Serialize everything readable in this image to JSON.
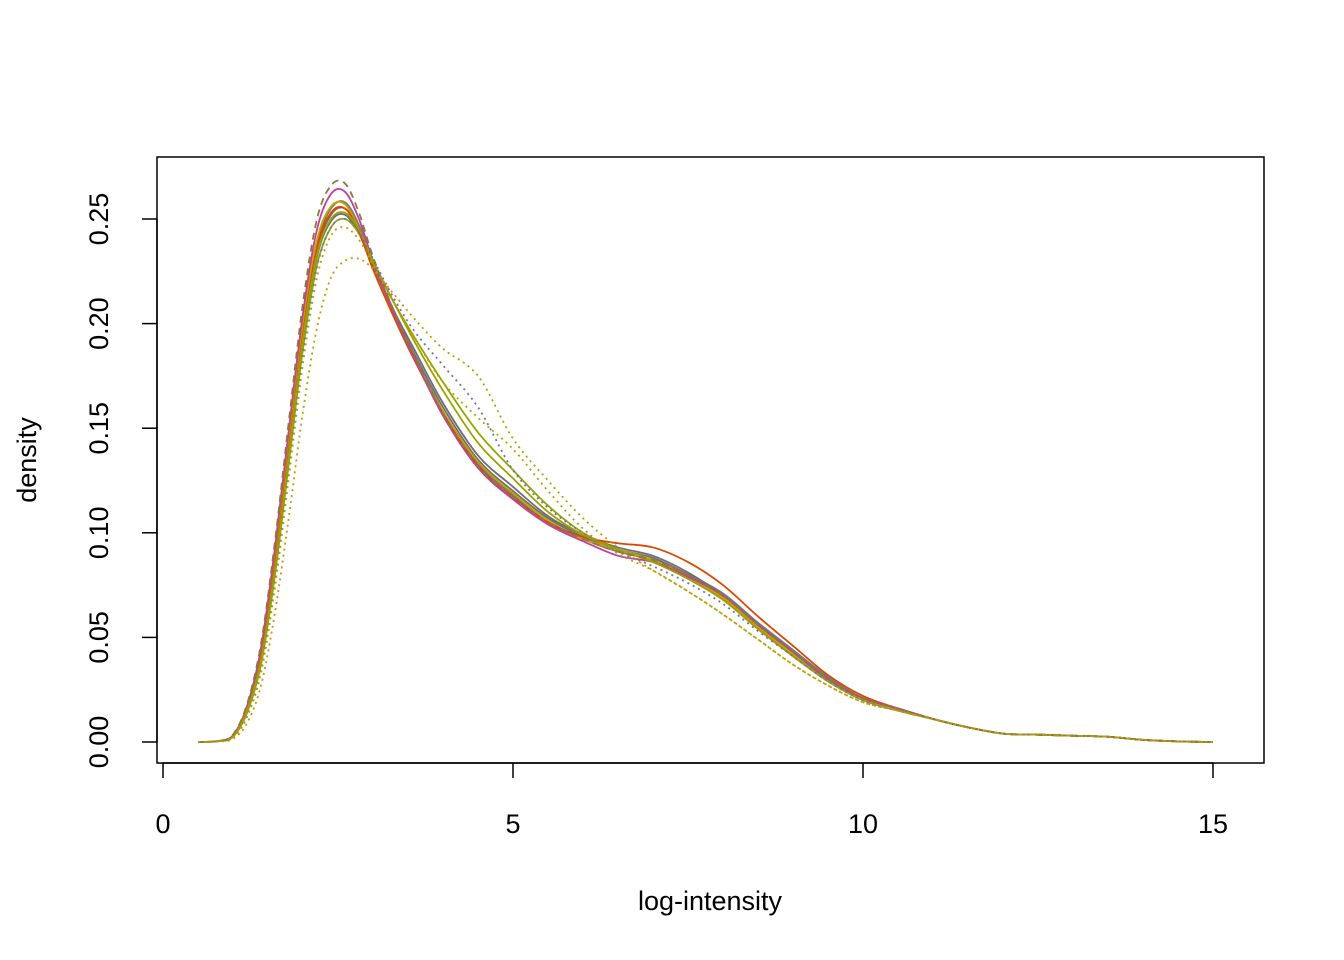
{
  "chart_data": {
    "type": "line",
    "title": "",
    "xlabel": "log-intensity",
    "ylabel": "density",
    "xlim": [
      0,
      15.6
    ],
    "ylim": [
      0,
      0.28
    ],
    "xticks": [
      0,
      5,
      10,
      15
    ],
    "xtick_labels": [
      "0",
      "5",
      "10",
      "15"
    ],
    "yticks": [
      0.0,
      0.05,
      0.1,
      0.15,
      0.2,
      0.25
    ],
    "ytick_labels": [
      "0.00",
      "0.05",
      "0.10",
      "0.15",
      "0.20",
      "0.25"
    ],
    "grid": false,
    "legend": "none",
    "x": [
      0.5,
      0.8,
      1.0,
      1.2,
      1.4,
      1.6,
      1.8,
      2.0,
      2.2,
      2.4,
      2.6,
      2.8,
      3.0,
      3.3,
      3.6,
      4.0,
      4.5,
      5.0,
      5.5,
      6.0,
      6.5,
      7.0,
      7.5,
      8.0,
      8.5,
      9.0,
      9.5,
      10.0,
      10.5,
      11.0,
      11.5,
      12.0,
      12.5,
      13.0,
      13.5,
      14.0,
      14.5,
      15.0
    ],
    "series": [
      {
        "color": "#707070",
        "dash": "solid",
        "values": [
          0.0,
          0.0005,
          0.003,
          0.015,
          0.04,
          0.085,
          0.14,
          0.195,
          0.235,
          0.252,
          0.255,
          0.245,
          0.228,
          0.205,
          0.185,
          0.16,
          0.135,
          0.12,
          0.107,
          0.098,
          0.092,
          0.088,
          0.08,
          0.07,
          0.056,
          0.043,
          0.03,
          0.021,
          0.016,
          0.011,
          0.007,
          0.004,
          0.0035,
          0.003,
          0.0025,
          0.001,
          0.0003,
          0.0
        ]
      },
      {
        "color": "#777777",
        "dash": "solid",
        "values": [
          0.0,
          0.0005,
          0.003,
          0.016,
          0.042,
          0.088,
          0.143,
          0.198,
          0.238,
          0.255,
          0.258,
          0.247,
          0.229,
          0.206,
          0.184,
          0.158,
          0.133,
          0.118,
          0.105,
          0.097,
          0.091,
          0.087,
          0.08,
          0.071,
          0.057,
          0.044,
          0.031,
          0.021,
          0.016,
          0.011,
          0.007,
          0.004,
          0.0035,
          0.003,
          0.0025,
          0.001,
          0.0003,
          0.0
        ]
      },
      {
        "color": "#6e6e6e",
        "dash": "solid",
        "values": [
          0.0,
          0.0004,
          0.0025,
          0.014,
          0.038,
          0.082,
          0.137,
          0.192,
          0.232,
          0.249,
          0.252,
          0.243,
          0.227,
          0.206,
          0.187,
          0.162,
          0.137,
          0.122,
          0.108,
          0.099,
          0.093,
          0.089,
          0.081,
          0.07,
          0.055,
          0.042,
          0.03,
          0.021,
          0.016,
          0.011,
          0.007,
          0.004,
          0.0035,
          0.003,
          0.0025,
          0.001,
          0.0003,
          0.0
        ]
      },
      {
        "color": "#c9a200",
        "dash": "solid",
        "values": [
          0.0,
          0.0005,
          0.003,
          0.016,
          0.043,
          0.09,
          0.146,
          0.2,
          0.24,
          0.256,
          0.257,
          0.245,
          0.226,
          0.204,
          0.183,
          0.158,
          0.134,
          0.119,
          0.106,
          0.097,
          0.092,
          0.087,
          0.079,
          0.069,
          0.055,
          0.042,
          0.03,
          0.021,
          0.016,
          0.011,
          0.007,
          0.004,
          0.0035,
          0.003,
          0.0025,
          0.001,
          0.0003,
          0.0
        ]
      },
      {
        "color": "#8fa800",
        "dash": "solid",
        "values": [
          0.0,
          0.0004,
          0.0025,
          0.014,
          0.037,
          0.08,
          0.134,
          0.188,
          0.228,
          0.246,
          0.25,
          0.243,
          0.229,
          0.21,
          0.193,
          0.172,
          0.148,
          0.13,
          0.113,
          0.1,
          0.092,
          0.086,
          0.078,
          0.068,
          0.054,
          0.041,
          0.029,
          0.02,
          0.015,
          0.011,
          0.007,
          0.004,
          0.0035,
          0.003,
          0.0025,
          0.001,
          0.0003,
          0.0
        ]
      },
      {
        "color": "#d94801",
        "dash": "solid",
        "values": [
          0.0,
          0.0005,
          0.003,
          0.015,
          0.04,
          0.085,
          0.14,
          0.195,
          0.236,
          0.253,
          0.255,
          0.244,
          0.226,
          0.203,
          0.182,
          0.157,
          0.132,
          0.117,
          0.105,
          0.098,
          0.095,
          0.093,
          0.086,
          0.075,
          0.06,
          0.046,
          0.032,
          0.022,
          0.016,
          0.011,
          0.007,
          0.004,
          0.0035,
          0.003,
          0.0025,
          0.001,
          0.0003,
          0.0
        ]
      },
      {
        "color": "#c2409a",
        "dash": "solid",
        "values": [
          0.0,
          0.0005,
          0.0032,
          0.017,
          0.045,
          0.093,
          0.15,
          0.205,
          0.245,
          0.262,
          0.263,
          0.25,
          0.23,
          0.205,
          0.183,
          0.156,
          0.131,
          0.116,
          0.104,
          0.096,
          0.089,
          0.086,
          0.079,
          0.07,
          0.056,
          0.043,
          0.03,
          0.021,
          0.016,
          0.011,
          0.007,
          0.004,
          0.0035,
          0.003,
          0.0025,
          0.001,
          0.0003,
          0.0
        ]
      },
      {
        "color": "#a0a000",
        "dash": "solid",
        "values": [
          0.0,
          0.0004,
          0.0026,
          0.015,
          0.039,
          0.083,
          0.138,
          0.193,
          0.233,
          0.25,
          0.253,
          0.245,
          0.23,
          0.21,
          0.191,
          0.168,
          0.143,
          0.126,
          0.11,
          0.099,
          0.092,
          0.086,
          0.078,
          0.068,
          0.054,
          0.041,
          0.029,
          0.02,
          0.015,
          0.011,
          0.007,
          0.004,
          0.0035,
          0.003,
          0.0025,
          0.001,
          0.0003,
          0.0
        ]
      },
      {
        "color": "#c49a00",
        "dash": "dotted",
        "values": [
          0.0,
          0.0002,
          0.0015,
          0.009,
          0.027,
          0.062,
          0.108,
          0.158,
          0.198,
          0.222,
          0.23,
          0.231,
          0.226,
          0.214,
          0.202,
          0.188,
          0.175,
          0.145,
          0.125,
          0.107,
          0.093,
          0.082,
          0.072,
          0.061,
          0.049,
          0.037,
          0.027,
          0.019,
          0.015,
          0.011,
          0.007,
          0.004,
          0.0035,
          0.003,
          0.0025,
          0.001,
          0.0003,
          0.0
        ]
      },
      {
        "color": "#7570b3",
        "dash": "dotted",
        "values": [
          0.0,
          0.0003,
          0.002,
          0.012,
          0.034,
          0.076,
          0.13,
          0.186,
          0.227,
          0.246,
          0.25,
          0.244,
          0.231,
          0.212,
          0.196,
          0.18,
          0.16,
          0.13,
          0.112,
          0.1,
          0.091,
          0.084,
          0.076,
          0.066,
          0.053,
          0.041,
          0.029,
          0.02,
          0.015,
          0.011,
          0.007,
          0.004,
          0.0035,
          0.003,
          0.0025,
          0.001,
          0.0003,
          0.0
        ]
      },
      {
        "color": "#8b7a3a",
        "dash": "dashed",
        "values": [
          0.0,
          0.0006,
          0.0035,
          0.018,
          0.047,
          0.096,
          0.154,
          0.21,
          0.25,
          0.266,
          0.267,
          0.253,
          0.232,
          0.206,
          0.184,
          0.157,
          0.132,
          0.117,
          0.105,
          0.097,
          0.091,
          0.087,
          0.08,
          0.07,
          0.056,
          0.043,
          0.03,
          0.021,
          0.016,
          0.011,
          0.007,
          0.004,
          0.0035,
          0.003,
          0.0025,
          0.001,
          0.0003,
          0.0
        ]
      },
      {
        "color": "#b8a000",
        "dash": "dotted",
        "values": [
          0.0,
          0.0003,
          0.002,
          0.012,
          0.033,
          0.074,
          0.127,
          0.181,
          0.222,
          0.242,
          0.246,
          0.24,
          0.228,
          0.21,
          0.193,
          0.172,
          0.155,
          0.14,
          0.12,
          0.102,
          0.09,
          0.082,
          0.072,
          0.061,
          0.049,
          0.037,
          0.027,
          0.019,
          0.015,
          0.011,
          0.007,
          0.004,
          0.0035,
          0.003,
          0.0025,
          0.001,
          0.0003,
          0.0
        ]
      }
    ]
  }
}
